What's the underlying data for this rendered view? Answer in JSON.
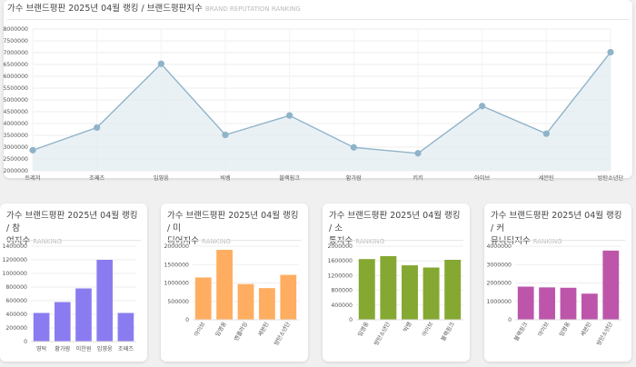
{
  "main": {
    "title": "가수 브랜드평판 2025년 04월 랭킹 / 브랜드평판지수",
    "subtitle": "BRAND REPUTATION RANKING"
  },
  "small_cards": [
    {
      "title_line1": "가수 브랜드평판 2025년 04월 랭킹 / 참",
      "title_line2": "여지수",
      "subtitle": "RANKING"
    },
    {
      "title_line1": "가수 브랜드평판 2025년 04월 랭킹 / 미",
      "title_line2": "디어지수",
      "subtitle": "RANKING"
    },
    {
      "title_line1": "가수 브랜드평판 2025년 04월 랭킹 / 소",
      "title_line2": "통지수",
      "subtitle": "RANKING"
    },
    {
      "title_line1": "가수 브랜드평판 2025년 04월 랭킹 / 커",
      "title_line2": "뮤니티지수",
      "subtitle": "RANKING"
    }
  ],
  "chart_data": [
    {
      "type": "area",
      "title": "가수 브랜드평판 2025년 04월 랭킹 / 브랜드평판지수",
      "categories": [
        "트레저",
        "조째즈",
        "임영웅",
        "빅뱅",
        "블랙핑크",
        "황가람",
        "키키",
        "아이브",
        "세븐틴",
        "방탄소년단"
      ],
      "values": [
        2870000,
        3830000,
        6530000,
        3520000,
        4340000,
        2990000,
        2740000,
        4740000,
        3570000,
        7020000
      ],
      "ylim": [
        2000000,
        8000000
      ],
      "yticks": [
        2000000,
        2500000,
        3000000,
        3500000,
        4000000,
        4500000,
        5000000,
        5500000,
        6000000,
        6500000,
        7000000,
        7500000,
        8000000
      ],
      "color": "#8fb3c9",
      "fill": "#e3ecf2",
      "grid": true
    },
    {
      "type": "bar",
      "title": "가수 브랜드평판 2025년 04월 랭킹 / 참여지수",
      "categories": [
        "영탁",
        "황가람",
        "이찬원",
        "임영웅",
        "조째즈"
      ],
      "values": [
        420000,
        580000,
        780000,
        1200000,
        420000
      ],
      "ylim": [
        0,
        1400000
      ],
      "yticks": [
        0,
        200000,
        400000,
        600000,
        800000,
        1000000,
        1200000,
        1400000
      ],
      "color": "#8a7cf0",
      "rotate_labels": false
    },
    {
      "type": "bar",
      "title": "가수 브랜드평판 2025년 04월 랭킹 / 미디어지수",
      "categories": [
        "아이브",
        "임영웅",
        "엔플라잉",
        "세븐틴",
        "방탄소년단"
      ],
      "values": [
        1150000,
        1900000,
        970000,
        860000,
        1220000
      ],
      "ylim": [
        0,
        2000000
      ],
      "yticks": [
        0,
        500000,
        1000000,
        1500000,
        2000000
      ],
      "color": "#ffad60",
      "rotate_labels": true
    },
    {
      "type": "bar",
      "title": "가수 브랜드평판 2025년 04월 랭킹 / 소통지수",
      "categories": [
        "임영웅",
        "방탄소년단",
        "빅뱅",
        "아이브",
        "블랙핑크"
      ],
      "values": [
        1650000,
        1730000,
        1480000,
        1420000,
        1630000
      ],
      "ylim": [
        0,
        2000000
      ],
      "yticks": [
        0,
        400000,
        800000,
        1200000,
        1600000,
        2000000
      ],
      "color": "#85a832",
      "rotate_labels": true
    },
    {
      "type": "bar",
      "title": "가수 브랜드평판 2025년 04월 랭킹 / 커뮤니티지수",
      "categories": [
        "블랙핑크",
        "아이브",
        "임영웅",
        "세븐틴",
        "방탄소년단"
      ],
      "values": [
        1800000,
        1760000,
        1740000,
        1420000,
        3760000
      ],
      "ylim": [
        0,
        4000000
      ],
      "yticks": [
        0,
        1000000,
        2000000,
        3000000,
        4000000
      ],
      "color": "#bd56aa",
      "rotate_labels": true
    }
  ]
}
